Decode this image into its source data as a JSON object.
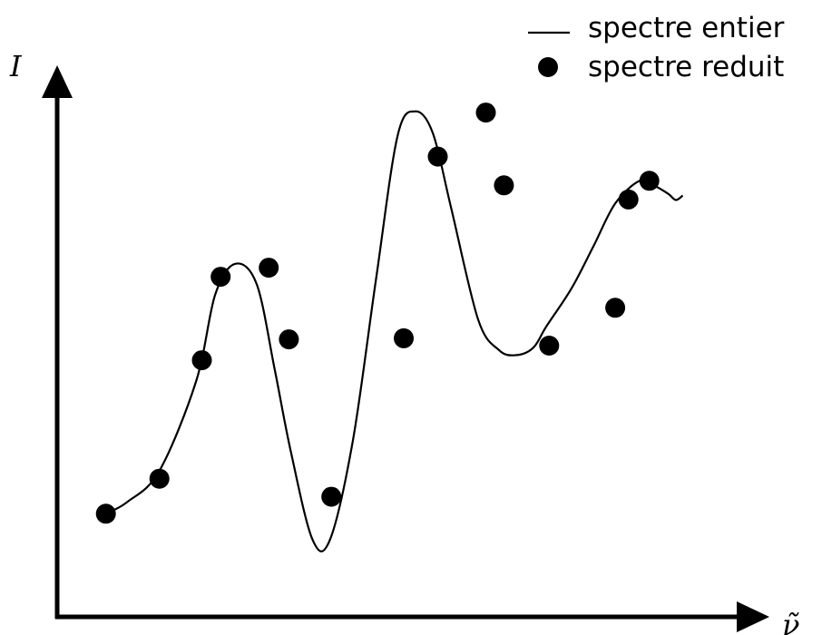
{
  "chart_data": {
    "type": "line",
    "title": "",
    "xlabel": "ν̃",
    "ylabel": "I",
    "axis_ticks": false,
    "grid": false,
    "legend_position": "top-right",
    "xlim": [
      0,
      100
    ],
    "ylim": [
      0,
      100
    ],
    "series": [
      {
        "name": "spectre entier",
        "style": "solid-line",
        "color": "#000000",
        "x": [
          7.0,
          10.1,
          14.7,
          20.0,
          22.7,
          25.6,
          28.7,
          31.3,
          33.6,
          36.7,
          39.2,
          42.5,
          45.8,
          48.9,
          51.5,
          54.0,
          56.6,
          60.5,
          63.5,
          65.9,
          68.4,
          70.3,
          73.9,
          77.1,
          80.2,
          83.7,
          85.7,
          87.8,
          88.9,
          89.9
        ],
        "y": [
          18.6,
          20.7,
          26.2,
          42.2,
          57.4,
          62.9,
          59.2,
          43.9,
          29.5,
          14.0,
          14.0,
          31.6,
          60.0,
          85.5,
          89.9,
          86.0,
          72.9,
          53.0,
          47.6,
          46.7,
          48.0,
          51.8,
          58.5,
          66.1,
          73.6,
          77.6,
          76.8,
          75.3,
          74.2,
          75.0
        ]
      },
      {
        "name": "spectre reduit",
        "style": "filled-dots",
        "color": "#000000",
        "x": [
          7.0,
          14.7,
          20.8,
          23.5,
          30.4,
          33.3,
          39.4,
          49.8,
          54.7,
          61.6,
          64.2,
          70.7,
          80.2,
          82.1,
          85.1
        ],
        "y": [
          18.6,
          24.8,
          45.8,
          60.6,
          62.2,
          49.5,
          21.6,
          49.7,
          81.9,
          89.7,
          76.8,
          48.4,
          55.1,
          74.3,
          77.6
        ]
      }
    ]
  },
  "legend": {
    "line_label": "spectre entier",
    "dots_label": "spectre reduit"
  },
  "axes": {
    "y_label": "I",
    "x_label": "ν̃"
  }
}
